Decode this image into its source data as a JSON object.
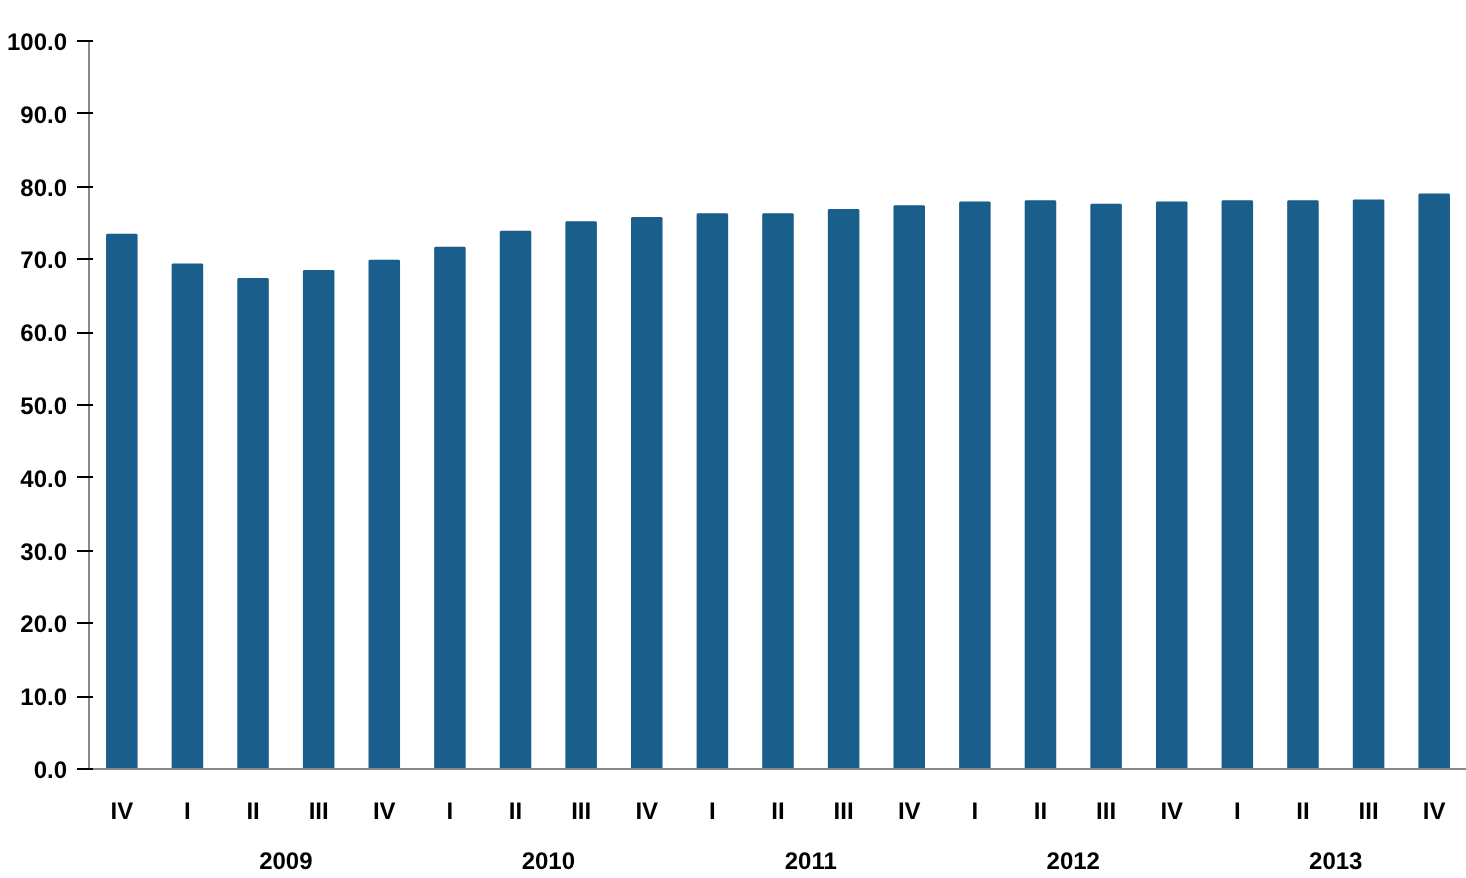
{
  "chart_data": {
    "type": "bar",
    "categories": [
      "IV",
      "I",
      "II",
      "III",
      "IV",
      "I",
      "II",
      "III",
      "IV",
      "I",
      "II",
      "III",
      "IV",
      "I",
      "II",
      "III",
      "IV",
      "I",
      "II",
      "III",
      "IV"
    ],
    "values": [
      73.4,
      69.3,
      67.3,
      68.4,
      69.8,
      71.6,
      73.8,
      75.1,
      75.7,
      76.2,
      76.2,
      76.8,
      77.3,
      77.8,
      78.0,
      77.5,
      77.8,
      78.0,
      78.0,
      78.1,
      78.9
    ],
    "color": "#1a5e8c",
    "ylim": [
      0,
      100
    ],
    "yticks": [
      {
        "value": 0,
        "label": "0.0"
      },
      {
        "value": 10,
        "label": "10.0"
      },
      {
        "value": 20,
        "label": "20.0"
      },
      {
        "value": 30,
        "label": "30.0"
      },
      {
        "value": 40,
        "label": "40.0"
      },
      {
        "value": 50,
        "label": "50.0"
      },
      {
        "value": 60,
        "label": "60.0"
      },
      {
        "value": 70,
        "label": "70.0"
      },
      {
        "value": 80,
        "label": "80.0"
      },
      {
        "value": 90,
        "label": "90.0"
      },
      {
        "value": 100,
        "label": "100.0"
      }
    ],
    "annotations": [
      "2009",
      "2010",
      "2011",
      "2012",
      "2013"
    ],
    "grid": false
  }
}
